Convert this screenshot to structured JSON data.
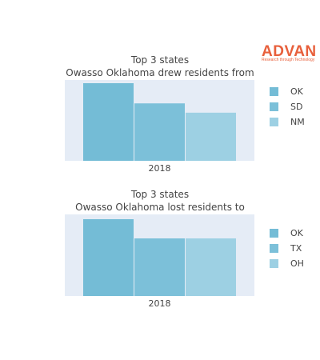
{
  "logo": {
    "name": "ADVAN",
    "tagline": "Research through Technology",
    "color": "#e8603c"
  },
  "chart_data": [
    {
      "type": "bar",
      "title_lines": [
        "Top 3 states",
        "Owasso Oklahoma drew residents from"
      ],
      "categories": [
        "2018"
      ],
      "series": [
        {
          "name": "OK",
          "values": [
            1.0
          ],
          "color": "#74bcd6"
        },
        {
          "name": "SD",
          "values": [
            0.74
          ],
          "color": "#7cc0d9"
        },
        {
          "name": "NM",
          "values": [
            0.62
          ],
          "color": "#9dd0e3"
        }
      ],
      "ylim": [
        0,
        1.0
      ],
      "grid": false,
      "legend_position": "right",
      "plot_background": "#e5ecf6"
    },
    {
      "type": "bar",
      "title_lines": [
        "Top 3 states",
        "Owasso Oklahoma lost residents to"
      ],
      "categories": [
        "2018"
      ],
      "series": [
        {
          "name": "OK",
          "values": [
            1.0
          ],
          "color": "#74bcd6"
        },
        {
          "name": "TX",
          "values": [
            0.75
          ],
          "color": "#7cc0d9"
        },
        {
          "name": "OH",
          "values": [
            0.75
          ],
          "color": "#9dd0e3"
        }
      ],
      "ylim": [
        0,
        1.0
      ],
      "grid": false,
      "legend_position": "right",
      "plot_background": "#e5ecf6"
    }
  ]
}
